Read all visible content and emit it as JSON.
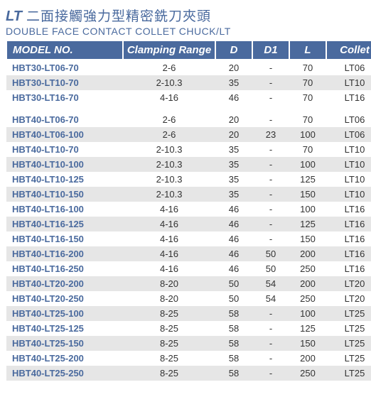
{
  "header": {
    "badge": "LT",
    "title_cn": "二面接觸強力型精密銑刀夾頭",
    "title_en": "DOUBLE FACE CONTACT COLLET CHUCK/LT"
  },
  "table": {
    "columns": {
      "model": "MODEL NO.",
      "clamp": "Clamping Range",
      "d": "D",
      "d1": "D1",
      "l": "L",
      "collet": "Collet"
    },
    "group1": [
      {
        "model": "HBT30-LT06-70",
        "clamp": "2-6",
        "d": "20",
        "d1": "-",
        "l": "70",
        "collet": "LT06",
        "shade": false
      },
      {
        "model": "HBT30-LT10-70",
        "clamp": "2-10.3",
        "d": "35",
        "d1": "-",
        "l": "70",
        "collet": "LT10",
        "shade": true
      },
      {
        "model": "HBT30-LT16-70",
        "clamp": "4-16",
        "d": "46",
        "d1": "-",
        "l": "70",
        "collet": "LT16",
        "shade": false
      }
    ],
    "group2": [
      {
        "model": "HBT40-LT06-70",
        "clamp": "2-6",
        "d": "20",
        "d1": "-",
        "l": "70",
        "collet": "LT06",
        "shade": false
      },
      {
        "model": "HBT40-LT06-100",
        "clamp": "2-6",
        "d": "20",
        "d1": "23",
        "l": "100",
        "collet": "LT06",
        "shade": true
      },
      {
        "model": "HBT40-LT10-70",
        "clamp": "2-10.3",
        "d": "35",
        "d1": "-",
        "l": "70",
        "collet": "LT10",
        "shade": false
      },
      {
        "model": "HBT40-LT10-100",
        "clamp": "2-10.3",
        "d": "35",
        "d1": "-",
        "l": "100",
        "collet": "LT10",
        "shade": true
      },
      {
        "model": "HBT40-LT10-125",
        "clamp": "2-10.3",
        "d": "35",
        "d1": "-",
        "l": "125",
        "collet": "LT10",
        "shade": false
      },
      {
        "model": "HBT40-LT10-150",
        "clamp": "2-10.3",
        "d": "35",
        "d1": "-",
        "l": "150",
        "collet": "LT10",
        "shade": true
      },
      {
        "model": "HBT40-LT16-100",
        "clamp": "4-16",
        "d": "46",
        "d1": "-",
        "l": "100",
        "collet": "LT16",
        "shade": false
      },
      {
        "model": "HBT40-LT16-125",
        "clamp": "4-16",
        "d": "46",
        "d1": "-",
        "l": "125",
        "collet": "LT16",
        "shade": true
      },
      {
        "model": "HBT40-LT16-150",
        "clamp": "4-16",
        "d": "46",
        "d1": "-",
        "l": "150",
        "collet": "LT16",
        "shade": false
      },
      {
        "model": "HBT40-LT16-200",
        "clamp": "4-16",
        "d": "46",
        "d1": "50",
        "l": "200",
        "collet": "LT16",
        "shade": true
      },
      {
        "model": "HBT40-LT16-250",
        "clamp": "4-16",
        "d": "46",
        "d1": "50",
        "l": "250",
        "collet": "LT16",
        "shade": false
      },
      {
        "model": "HBT40-LT20-200",
        "clamp": "8-20",
        "d": "50",
        "d1": "54",
        "l": "200",
        "collet": "LT20",
        "shade": true
      },
      {
        "model": "HBT40-LT20-250",
        "clamp": "8-20",
        "d": "50",
        "d1": "54",
        "l": "250",
        "collet": "LT20",
        "shade": false
      },
      {
        "model": "HBT40-LT25-100",
        "clamp": "8-25",
        "d": "58",
        "d1": "-",
        "l": "100",
        "collet": "LT25",
        "shade": true
      },
      {
        "model": "HBT40-LT25-125",
        "clamp": "8-25",
        "d": "58",
        "d1": "-",
        "l": "125",
        "collet": "LT25",
        "shade": false
      },
      {
        "model": "HBT40-LT25-150",
        "clamp": "8-25",
        "d": "58",
        "d1": "-",
        "l": "150",
        "collet": "LT25",
        "shade": true
      },
      {
        "model": "HBT40-LT25-200",
        "clamp": "8-25",
        "d": "58",
        "d1": "-",
        "l": "200",
        "collet": "LT25",
        "shade": false
      },
      {
        "model": "HBT40-LT25-250",
        "clamp": "8-25",
        "d": "58",
        "d1": "-",
        "l": "250",
        "collet": "LT25",
        "shade": true
      }
    ]
  }
}
